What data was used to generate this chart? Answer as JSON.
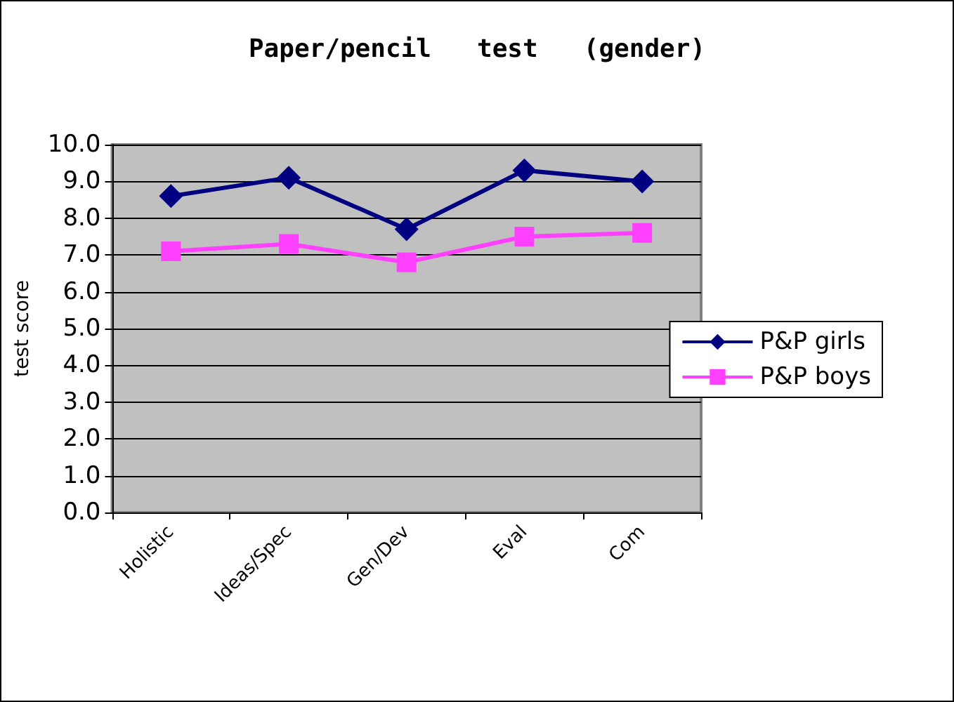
{
  "chart_data": {
    "type": "line",
    "title": "Paper/pencil   test   (gender)",
    "ylabel": "test score",
    "categories": [
      "Holistic",
      "Ideas/Spec",
      "Gen/Dev",
      "Eval",
      "Com"
    ],
    "series": [
      {
        "name": "P&P girls",
        "color": "#000080",
        "marker": "diamond",
        "values": [
          8.6,
          9.1,
          7.7,
          9.3,
          9.0
        ]
      },
      {
        "name": "P&P boys",
        "color": "#ff40ff",
        "marker": "square",
        "values": [
          7.1,
          7.3,
          6.8,
          7.5,
          7.6
        ]
      }
    ],
    "ylim": [
      0,
      10
    ],
    "yticks": [
      {
        "value": 0,
        "label": "0.0"
      },
      {
        "value": 1,
        "label": "1.0"
      },
      {
        "value": 2,
        "label": "2.0"
      },
      {
        "value": 3,
        "label": "3.0"
      },
      {
        "value": 4,
        "label": "4.0"
      },
      {
        "value": 5,
        "label": "5.0"
      },
      {
        "value": 6,
        "label": "6.0"
      },
      {
        "value": 7,
        "label": "7.0"
      },
      {
        "value": 8,
        "label": "8.0"
      },
      {
        "value": 9,
        "label": "9.0"
      },
      {
        "value": 10,
        "label": "10.0"
      }
    ],
    "grid": "y",
    "legend": "right"
  }
}
